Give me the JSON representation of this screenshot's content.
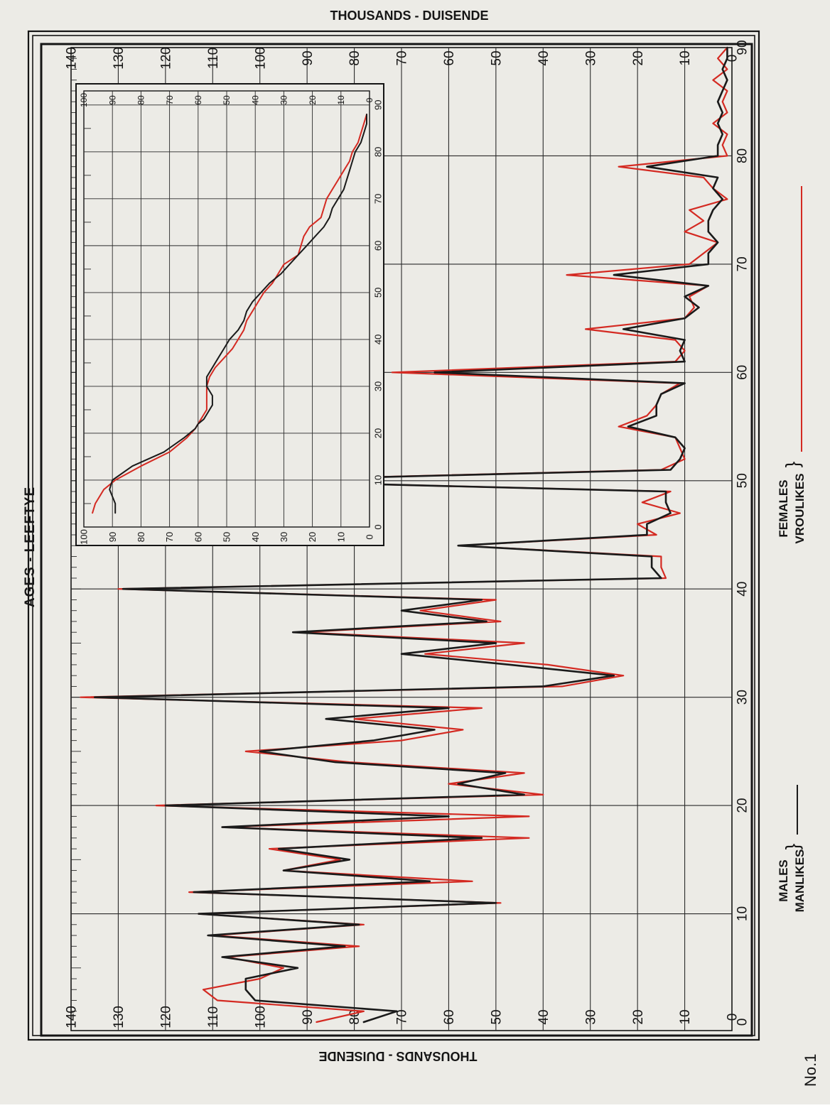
{
  "page": {
    "figure_number": "No.1"
  },
  "legend": {
    "males_en": "MALES",
    "males_af": "MANLIKES",
    "females_en": "FEMALES",
    "females_af": "VROULIKES"
  },
  "colors": {
    "males": "#1a1a1a",
    "females": "#d42a22",
    "background": "#ecebe6",
    "ink": "#151515"
  },
  "chart_data": [
    {
      "type": "line",
      "title": "AGES - LEEFTYE",
      "xlabel": "AGES - LEEFTYE",
      "ylabel": "THOUSANDS - DUISENDE",
      "orientation": "rotated 90 degrees clockwise",
      "xlim": [
        0,
        90
      ],
      "ylim": [
        0,
        140
      ],
      "x_ticks": [
        0,
        10,
        20,
        30,
        40,
        50,
        60,
        70,
        80,
        90
      ],
      "y_ticks": [
        0,
        10,
        20,
        30,
        40,
        50,
        60,
        70,
        80,
        90,
        100,
        110,
        120,
        130,
        140
      ],
      "grid": true,
      "legend_position": "bottom",
      "x": [
        0,
        1,
        2,
        3,
        4,
        5,
        6,
        7,
        8,
        9,
        10,
        11,
        12,
        13,
        14,
        15,
        16,
        17,
        18,
        19,
        20,
        21,
        22,
        23,
        24,
        25,
        26,
        27,
        28,
        29,
        30,
        31,
        32,
        33,
        34,
        35,
        36,
        37,
        38,
        39,
        40,
        41,
        42,
        43,
        44,
        45,
        46,
        47,
        48,
        49,
        50,
        51,
        52,
        53,
        54,
        55,
        56,
        57,
        58,
        59,
        60,
        61,
        62,
        63,
        64,
        65,
        66,
        67,
        68,
        69,
        70,
        71,
        72,
        73,
        74,
        75,
        76,
        77,
        78,
        79,
        80,
        81,
        82,
        83,
        84,
        85,
        86,
        87,
        88,
        89,
        90
      ],
      "series": [
        {
          "name": "MALES / MANLIKES",
          "color": "#1a1a1a",
          "values": [
            78,
            71,
            101,
            103,
            103,
            92,
            108,
            82,
            111,
            79,
            113,
            50,
            114,
            64,
            95,
            81,
            96,
            53,
            108,
            60,
            120,
            44,
            58,
            48,
            84,
            100,
            76,
            63,
            86,
            60,
            135,
            40,
            25,
            47,
            70,
            50,
            93,
            52,
            70,
            53,
            129,
            15,
            17,
            17,
            58,
            18,
            18,
            13,
            14,
            14,
            106,
            13,
            11,
            10,
            12,
            22,
            16,
            16,
            15,
            10,
            63,
            10,
            11,
            10,
            23,
            10,
            7,
            10,
            5,
            25,
            5,
            5,
            3,
            5,
            5,
            4,
            2,
            4,
            3,
            18,
            3,
            3,
            2,
            3,
            2,
            3,
            2,
            1,
            2,
            1,
            1
          ]
        },
        {
          "name": "FEMALES / VROULIKES",
          "color": "#d42a22",
          "values": [
            88,
            78,
            109,
            112,
            100,
            95,
            107,
            79,
            110,
            78,
            113,
            49,
            115,
            55,
            95,
            83,
            98,
            43,
            108,
            43,
            122,
            40,
            60,
            44,
            81,
            103,
            70,
            57,
            80,
            53,
            138,
            36,
            23,
            39,
            65,
            44,
            91,
            49,
            66,
            50,
            130,
            14,
            15,
            15,
            58,
            16,
            20,
            11,
            19,
            13,
            107,
            15,
            10,
            11,
            12,
            24,
            18,
            16,
            15,
            11,
            72,
            12,
            10,
            12,
            31,
            10,
            8,
            9,
            5,
            35,
            9,
            6,
            3,
            10,
            6,
            9,
            1,
            4,
            6,
            24,
            1,
            2,
            1,
            4,
            1,
            2,
            1,
            4,
            1,
            3,
            1
          ]
        }
      ]
    },
    {
      "type": "line",
      "title": "",
      "xlabel": "",
      "ylabel": "",
      "orientation": "rotated 90 degrees clockwise (inset)",
      "xlim": [
        0,
        90
      ],
      "ylim": [
        0,
        100
      ],
      "x_ticks": [
        0,
        10,
        20,
        30,
        40,
        50,
        60,
        70,
        80,
        90
      ],
      "y_ticks": [
        0,
        10,
        20,
        30,
        40,
        50,
        60,
        70,
        80,
        90,
        100
      ],
      "grid": true,
      "x": [
        3,
        5,
        8,
        10,
        13,
        16,
        19,
        21,
        22,
        23,
        24,
        25,
        26,
        28,
        30,
        32,
        34,
        36,
        38,
        40,
        42,
        44,
        46,
        48,
        50,
        52,
        54,
        56,
        58,
        60,
        62,
        64,
        66,
        68,
        70,
        72,
        74,
        76,
        78,
        80,
        82,
        84,
        86,
        88
      ],
      "series": [
        {
          "name": "MALES / MANLIKES",
          "color": "#1a1a1a",
          "values": [
            89,
            89,
            91,
            90,
            83,
            72,
            65,
            61,
            60,
            58,
            57,
            56,
            55,
            55,
            57,
            57,
            55,
            53,
            51,
            49,
            46,
            44,
            43,
            41,
            38,
            35,
            31,
            28,
            25,
            22,
            19,
            16,
            14,
            13,
            11,
            9,
            8,
            7,
            6,
            5,
            3,
            2,
            1,
            1
          ]
        },
        {
          "name": "FEMALES / VROULIKES",
          "color": "#d42a22",
          "values": [
            97,
            96,
            93,
            89,
            80,
            70,
            64,
            61,
            60,
            59,
            58,
            57,
            57,
            57,
            57,
            56,
            54,
            51,
            48,
            46,
            44,
            43,
            41,
            39,
            37,
            34,
            32,
            30,
            25,
            24,
            23,
            21,
            17,
            16,
            15,
            13,
            11,
            9,
            7,
            6,
            4,
            3,
            2,
            1
          ]
        }
      ]
    }
  ]
}
